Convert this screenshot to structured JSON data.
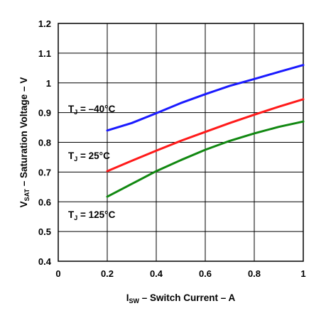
{
  "chart_data": {
    "type": "line",
    "title": "",
    "xlabel": {
      "main": "I",
      "sub": "SW",
      "rest": " – Switch Current – A"
    },
    "ylabel": {
      "main": "V",
      "sub": "SAT",
      "rest": " – Saturation Voltage – V"
    },
    "xlim": [
      0,
      1
    ],
    "ylim": [
      0.4,
      1.2
    ],
    "x_ticks": [
      "0",
      "0.2",
      "0.4",
      "0.6",
      "0.8",
      "1"
    ],
    "y_ticks": [
      "0.4",
      "0.5",
      "0.6",
      "0.7",
      "0.8",
      "0.9",
      "1",
      "1.1",
      "1.2"
    ],
    "grid": true,
    "x": [
      0.2,
      0.3,
      0.4,
      0.5,
      0.6,
      0.7,
      0.8,
      0.9,
      1.0
    ],
    "series": [
      {
        "name": "T_J = –40°C",
        "label_main": "T",
        "label_sub": "J",
        "label_rest": " = –40°C",
        "color": "#1a1aff",
        "values": [
          0.84,
          0.865,
          0.898,
          0.932,
          0.962,
          0.99,
          1.013,
          1.037,
          1.06
        ]
      },
      {
        "name": "T_J = 25°C",
        "label_main": "T",
        "label_sub": "J",
        "label_rest": " = 25°C",
        "color": "#ff1a1a",
        "values": [
          0.703,
          0.738,
          0.772,
          0.805,
          0.835,
          0.865,
          0.893,
          0.92,
          0.945
        ]
      },
      {
        "name": "T_J = 125°C",
        "label_main": "T",
        "label_sub": "J",
        "label_rest": " = 125°C",
        "color": "#118811",
        "values": [
          0.617,
          0.66,
          0.703,
          0.74,
          0.775,
          0.805,
          0.83,
          0.852,
          0.87
        ]
      }
    ]
  }
}
